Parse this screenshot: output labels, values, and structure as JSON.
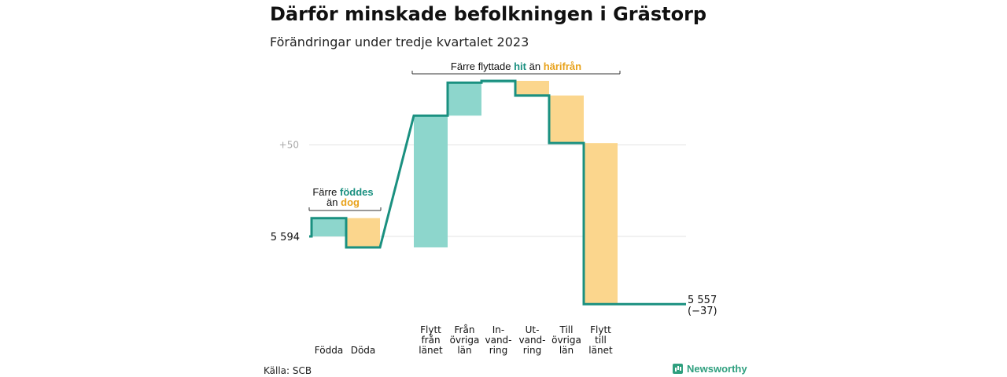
{
  "title": "Därför minskade befolkningen i Grästorp",
  "subtitle": "Förändringar under tredje kvartalet 2023",
  "source": "Källa: SCB",
  "brand": "Newsworthy",
  "colors": {
    "increase": "#8dd6cc",
    "decrease": "#fbd68d",
    "line": "#1a9080",
    "hit": "#1a9080",
    "harifran": "#e8a21b"
  },
  "chart_data": {
    "type": "waterfall",
    "start_value": 5594,
    "start_label": "5 594",
    "end_value": 5557,
    "end_label": "5 557",
    "end_change": "(−37)",
    "gridline_labels": [
      "+50"
    ],
    "categories": [
      {
        "label": [
          "Födda"
        ],
        "value": 10,
        "kind": "increase"
      },
      {
        "label": [
          "Döda"
        ],
        "value": -16,
        "kind": "decrease"
      },
      {
        "label": [
          "Flytt",
          "från",
          "länet"
        ],
        "value": 72,
        "kind": "increase"
      },
      {
        "label": [
          "Från",
          "övriga",
          "län"
        ],
        "value": 18,
        "kind": "increase"
      },
      {
        "label": [
          "In-",
          "vand-",
          "ring"
        ],
        "value": 1,
        "kind": "increase"
      },
      {
        "label": [
          "Ut-",
          "vand-",
          "ring"
        ],
        "value": -8,
        "kind": "decrease"
      },
      {
        "label": [
          "Till",
          "övriga",
          "län"
        ],
        "value": -26,
        "kind": "decrease"
      },
      {
        "label": [
          "Flytt",
          "till",
          "länet"
        ],
        "value": -88,
        "kind": "decrease"
      }
    ],
    "annotations": {
      "born": {
        "line1_pre": "Färre ",
        "line1_hl": "föddes",
        "line2_pre": "än ",
        "line2_hl": "dog"
      },
      "moved": {
        "pre": "Färre flyttade ",
        "hl1": "hit",
        "mid": " än ",
        "hl2": "härifrån"
      }
    }
  }
}
